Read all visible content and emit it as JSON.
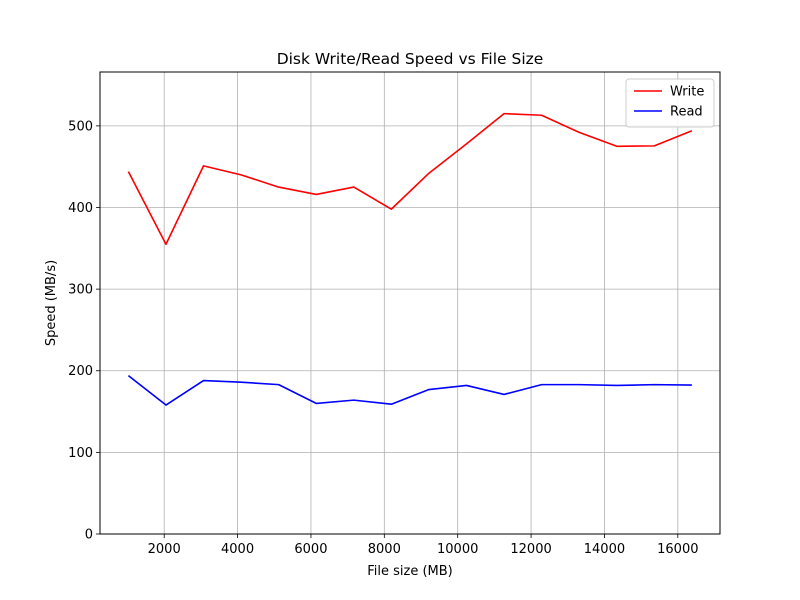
{
  "chart_data": {
    "type": "line",
    "title": "Disk Write/Read Speed vs File Size",
    "xlabel": "File size (MB)",
    "ylabel": "Speed (MB/s)",
    "xlim": [
      250,
      17150
    ],
    "ylim": [
      0,
      566
    ],
    "xticks": [
      2000,
      4000,
      6000,
      8000,
      10000,
      12000,
      14000,
      16000
    ],
    "yticks": [
      0,
      100,
      200,
      300,
      400,
      500
    ],
    "grid": true,
    "legend_position": "top-right",
    "x": [
      1024,
      2048,
      3072,
      4096,
      5120,
      6144,
      7168,
      8192,
      9216,
      10240,
      11264,
      12288,
      13312,
      14336,
      15360,
      16384
    ],
    "series": [
      {
        "name": "Write",
        "color": "#ff0000",
        "values": [
          444,
          355,
          451,
          440,
          425,
          416,
          425,
          398,
          442,
          478,
          515,
          513,
          492,
          475,
          475.5,
          494
        ]
      },
      {
        "name": "Read",
        "color": "#0000ff",
        "values": [
          194,
          158,
          188,
          186,
          183,
          160,
          164,
          159,
          177,
          182,
          171,
          183,
          183,
          182,
          183,
          182.5
        ]
      }
    ]
  }
}
